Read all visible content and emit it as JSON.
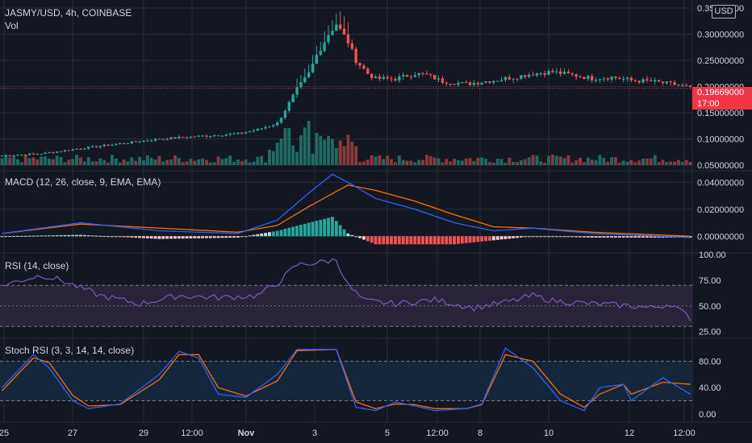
{
  "header": {
    "symbol": "JASMY/USD, 4h, COINBASE",
    "vol_label": "Vol"
  },
  "currency_button": "USD",
  "price_badge": {
    "price": "0.19669000",
    "countdown": "17:00"
  },
  "colors": {
    "background": "#131722",
    "grid": "#2a2e39",
    "up": "#26a69a",
    "down": "#ef5350",
    "up_vol": "#1f6b61",
    "down_vol": "#8a3a3c",
    "macd": "#2962ff",
    "signal": "#ff6d00",
    "rsi": "#7e57c2",
    "rsi_band": "#2a2439",
    "stoch_k": "#2962ff",
    "stoch_d": "#ff6d00",
    "stoch_band": "#16263a",
    "price_line": "#f23645"
  },
  "chart_data": [
    {
      "type": "candlestick",
      "name": "price",
      "y_ticks": [
        "0.35000000",
        "0.30000000",
        "0.25000000",
        "0.20000000",
        "0.15000000",
        "0.10000000",
        "0.05000000"
      ],
      "ylim": [
        0.05,
        0.35
      ],
      "x_ticks": [
        "25",
        "27",
        "29",
        "12:00",
        "Nov",
        "3",
        "5",
        "12:00",
        "8",
        "10",
        "12",
        "12:00"
      ],
      "last_price": 0.19669,
      "close_path": [
        [
          0,
          0.068
        ],
        [
          10,
          0.072
        ],
        [
          20,
          0.082
        ],
        [
          40,
          0.1
        ],
        [
          50,
          0.105
        ],
        [
          60,
          0.11
        ],
        [
          65,
          0.118
        ],
        [
          70,
          0.13
        ],
        [
          72,
          0.155
        ],
        [
          75,
          0.195
        ],
        [
          78,
          0.225
        ],
        [
          80,
          0.26
        ],
        [
          83,
          0.3
        ],
        [
          85,
          0.32
        ],
        [
          88,
          0.285
        ],
        [
          90,
          0.25
        ],
        [
          93,
          0.225
        ],
        [
          95,
          0.215
        ],
        [
          100,
          0.215
        ],
        [
          105,
          0.225
        ],
        [
          108,
          0.222
        ],
        [
          112,
          0.21
        ],
        [
          118,
          0.205
        ],
        [
          125,
          0.212
        ],
        [
          130,
          0.218
        ],
        [
          135,
          0.225
        ],
        [
          140,
          0.228
        ],
        [
          145,
          0.222
        ],
        [
          150,
          0.216
        ],
        [
          155,
          0.218
        ],
        [
          160,
          0.212
        ],
        [
          165,
          0.21
        ],
        [
          170,
          0.205
        ],
        [
          174,
          0.2
        ],
        [
          175,
          0.19669
        ]
      ]
    },
    {
      "type": "bar",
      "name": "volume",
      "values": "generated per candle (spikes near Nov 2–3)"
    },
    {
      "type": "line",
      "name": "MACD (12, 26, close, 9, EMA, EMA)",
      "y_ticks": [
        "0.04000000",
        "0.02000000",
        "0.00000000"
      ],
      "ylim": [
        -0.01,
        0.045
      ],
      "macd_path": [
        [
          0,
          0.002
        ],
        [
          20,
          0.01
        ],
        [
          40,
          0.004
        ],
        [
          60,
          0.002
        ],
        [
          70,
          0.012
        ],
        [
          78,
          0.032
        ],
        [
          84,
          0.046
        ],
        [
          88,
          0.04
        ],
        [
          95,
          0.028
        ],
        [
          105,
          0.02
        ],
        [
          115,
          0.01
        ],
        [
          125,
          0.004
        ],
        [
          135,
          0.006
        ],
        [
          150,
          0.002
        ],
        [
          175,
          -0.001
        ]
      ],
      "signal_path": [
        [
          0,
          0.002
        ],
        [
          20,
          0.009
        ],
        [
          40,
          0.006
        ],
        [
          60,
          0.003
        ],
        [
          70,
          0.008
        ],
        [
          78,
          0.022
        ],
        [
          88,
          0.038
        ],
        [
          95,
          0.034
        ],
        [
          105,
          0.026
        ],
        [
          115,
          0.016
        ],
        [
          125,
          0.007
        ],
        [
          135,
          0.006
        ],
        [
          150,
          0.003
        ],
        [
          175,
          0.0
        ]
      ]
    },
    {
      "type": "line",
      "name": "RSI (14, close)",
      "y_ticks": [
        "100.00",
        "75.00",
        "50.00",
        "25.00"
      ],
      "ylim": [
        20,
        100
      ],
      "band": [
        30,
        70
      ],
      "path": [
        [
          0,
          70
        ],
        [
          10,
          80
        ],
        [
          15,
          75
        ],
        [
          25,
          60
        ],
        [
          35,
          52
        ],
        [
          45,
          60
        ],
        [
          55,
          58
        ],
        [
          65,
          60
        ],
        [
          70,
          72
        ],
        [
          75,
          90
        ],
        [
          80,
          92
        ],
        [
          85,
          95
        ],
        [
          88,
          70
        ],
        [
          92,
          55
        ],
        [
          100,
          52
        ],
        [
          110,
          56
        ],
        [
          120,
          48
        ],
        [
          130,
          55
        ],
        [
          135,
          60
        ],
        [
          140,
          55
        ],
        [
          150,
          52
        ],
        [
          160,
          50
        ],
        [
          165,
          48
        ],
        [
          170,
          52
        ],
        [
          175,
          38
        ]
      ]
    },
    {
      "type": "line",
      "name": "Stoch RSI (3, 3, 14, 14, close)",
      "y_ticks": [
        "80.00",
        "40.00",
        "0.00"
      ],
      "ylim": [
        -10,
        110
      ],
      "band": [
        20,
        80
      ],
      "k_path": [
        [
          0,
          40
        ],
        [
          8,
          90
        ],
        [
          12,
          70
        ],
        [
          18,
          20
        ],
        [
          22,
          8
        ],
        [
          30,
          15
        ],
        [
          40,
          60
        ],
        [
          45,
          95
        ],
        [
          50,
          85
        ],
        [
          55,
          30
        ],
        [
          62,
          25
        ],
        [
          70,
          60
        ],
        [
          75,
          98
        ],
        [
          85,
          98
        ],
        [
          90,
          10
        ],
        [
          95,
          5
        ],
        [
          100,
          18
        ],
        [
          105,
          12
        ],
        [
          110,
          5
        ],
        [
          118,
          8
        ],
        [
          122,
          15
        ],
        [
          128,
          100
        ],
        [
          135,
          70
        ],
        [
          142,
          20
        ],
        [
          148,
          5
        ],
        [
          152,
          40
        ],
        [
          158,
          45
        ],
        [
          160,
          20
        ],
        [
          168,
          55
        ],
        [
          175,
          30
        ]
      ],
      "d_path": [
        [
          0,
          35
        ],
        [
          8,
          85
        ],
        [
          12,
          78
        ],
        [
          18,
          28
        ],
        [
          22,
          12
        ],
        [
          30,
          14
        ],
        [
          40,
          52
        ],
        [
          45,
          90
        ],
        [
          50,
          90
        ],
        [
          55,
          40
        ],
        [
          62,
          27
        ],
        [
          70,
          50
        ],
        [
          75,
          96
        ],
        [
          85,
          98
        ],
        [
          90,
          18
        ],
        [
          95,
          8
        ],
        [
          100,
          15
        ],
        [
          105,
          14
        ],
        [
          110,
          8
        ],
        [
          118,
          8
        ],
        [
          122,
          14
        ],
        [
          128,
          90
        ],
        [
          135,
          80
        ],
        [
          142,
          30
        ],
        [
          148,
          10
        ],
        [
          152,
          30
        ],
        [
          158,
          45
        ],
        [
          160,
          30
        ],
        [
          168,
          48
        ],
        [
          175,
          45
        ]
      ]
    }
  ]
}
